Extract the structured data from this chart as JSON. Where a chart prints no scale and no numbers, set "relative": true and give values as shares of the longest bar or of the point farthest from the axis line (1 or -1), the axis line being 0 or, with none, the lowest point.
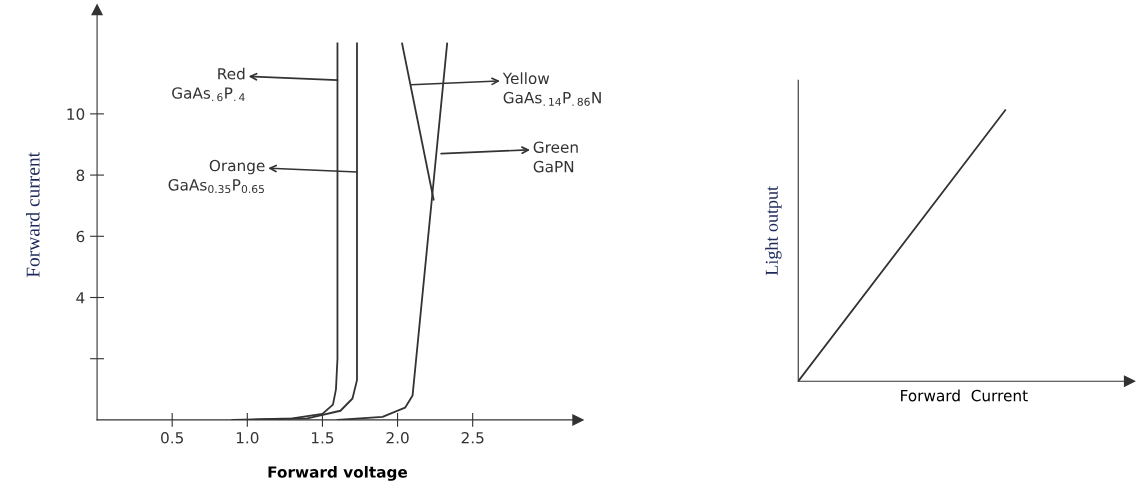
{
  "chart_data": [
    {
      "type": "line",
      "xlabel": "Forward voltage",
      "ylabel": "Forward current",
      "xlim": [
        0,
        3.2
      ],
      "ylim": [
        0,
        13.4
      ],
      "xticks": [
        {
          "value": 0.5,
          "label": "0.5"
        },
        {
          "value": 1.0,
          "label": "1.0"
        },
        {
          "value": 1.5,
          "label": "1.5"
        },
        {
          "value": 2.0,
          "label": "2.0"
        },
        {
          "value": 2.5,
          "label": "2.5"
        }
      ],
      "yticks": [
        {
          "value": 2,
          "label": null
        },
        4,
        6,
        8,
        10
      ],
      "grid": false,
      "legend": false,
      "marker": "none",
      "line_style": "solid",
      "series": [
        {
          "color": "#333333",
          "x": [
            0.9,
            1.3,
            1.5,
            1.57,
            1.59,
            1.6,
            1.6
          ],
          "values": [
            0,
            0.05,
            0.2,
            0.5,
            1.0,
            2.0,
            12.3
          ]
        },
        {
          "color": "#333333",
          "x": [
            1.0,
            1.4,
            1.62,
            1.7,
            1.73,
            1.73
          ],
          "values": [
            0,
            0.05,
            0.3,
            0.7,
            1.3,
            12.3
          ]
        },
        {
          "color": "#333333",
          "x": [
            1.6,
            1.9,
            2.05,
            2.1,
            2.33
          ],
          "values": [
            0,
            0.1,
            0.4,
            0.8,
            12.3
          ]
        },
        {
          "color": "#333333",
          "x": [
            2.03,
            2.24
          ],
          "values": [
            12.3,
            7.2
          ]
        }
      ],
      "annotations": [
        {
          "text": "Red\nGaAs$_{.6}$P$_{.4}$",
          "x": 1.6,
          "y": 11.1
        },
        {
          "text": "Orange\nGaAs$_{0.35}$P$_{0.65}$",
          "x": 1.73,
          "y": 8.1
        },
        {
          "text": "Yellow\nGaAs$_{.14}$P$_{.86}$N",
          "x": 2.09,
          "y": 10.95
        },
        {
          "text": "Green\nGaPN",
          "x": 2.29,
          "y": 8.7
        }
      ]
    },
    {
      "type": "line",
      "relative": true,
      "xlabel": "Forward  Current",
      "ylabel": "Light output",
      "categories": [
        null,
        null
      ],
      "marker": "none",
      "line_style": "solid",
      "grid": false,
      "legend": false,
      "series": [
        {
          "color": "#333333",
          "values": [
            0,
            1
          ]
        }
      ]
    }
  ]
}
